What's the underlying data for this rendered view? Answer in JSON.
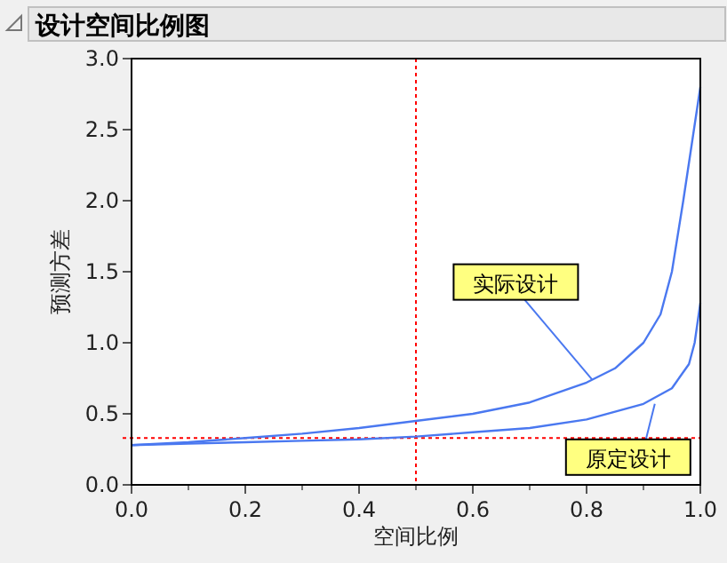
{
  "chart_data": {
    "type": "line",
    "title": "设计空间比例图",
    "xlabel": "空间比例",
    "ylabel": "预测方差",
    "xlim": [
      0,
      1
    ],
    "ylim": [
      0,
      3
    ],
    "xticks": [
      {
        "value": 0,
        "label": "0.0"
      },
      0.2,
      0.4,
      0.6,
      0.8,
      {
        "value": 1,
        "label": "1.0"
      }
    ],
    "yticks": [
      {
        "value": 0,
        "label": "0.0"
      },
      0.5,
      {
        "value": 1,
        "label": "1.0"
      },
      1.5,
      {
        "value": 2,
        "label": "2.0"
      },
      2.5,
      {
        "value": 3,
        "label": "3.0"
      }
    ],
    "series": [
      {
        "color": "#4a78f0",
        "x": [
          0,
          0.1,
          0.2,
          0.3,
          0.4,
          0.5,
          0.6,
          0.7,
          0.8,
          0.85,
          0.9,
          0.93,
          0.95,
          0.97,
          0.985,
          1.0
        ],
        "values": [
          0.28,
          0.3,
          0.33,
          0.36,
          0.4,
          0.45,
          0.5,
          0.58,
          0.72,
          0.82,
          1.0,
          1.2,
          1.5,
          2.0,
          2.4,
          2.8
        ]
      },
      {
        "color": "#4a78f0",
        "x": [
          0,
          0.1,
          0.2,
          0.3,
          0.4,
          0.5,
          0.6,
          0.7,
          0.8,
          0.9,
          0.95,
          0.98,
          0.99,
          1.0
        ],
        "values": [
          0.28,
          0.29,
          0.3,
          0.31,
          0.32,
          0.34,
          0.37,
          0.4,
          0.46,
          0.57,
          0.68,
          0.85,
          1.0,
          1.28
        ]
      }
    ],
    "ref_lines": [
      {
        "axis": "x",
        "value": 0.5,
        "color": "#ff0000",
        "line_style": "dotted"
      },
      {
        "axis": "y",
        "value": 0.33,
        "color": "#ff0000",
        "line_style": "dotted"
      }
    ],
    "annotations": [
      {
        "text": "实际设计",
        "x": 0.81,
        "y": 0.74
      },
      {
        "text": "原定设计",
        "x": 0.92,
        "y": 0.57
      }
    ],
    "marker": "none",
    "line_style": "solid",
    "grid": false
  }
}
